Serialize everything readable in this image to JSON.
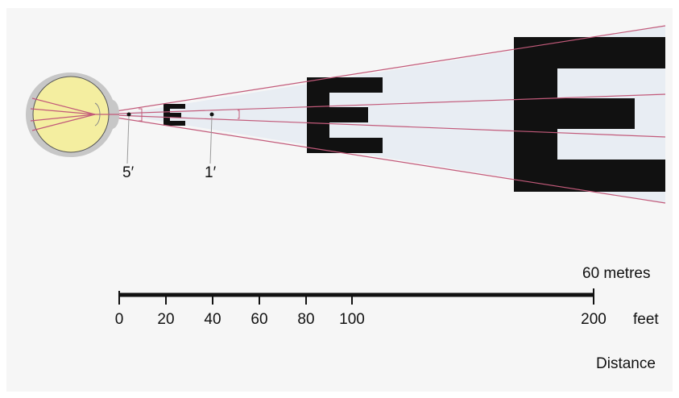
{
  "diagram": {
    "angle_labels": {
      "five_minute": "5′",
      "one_minute": "1′"
    },
    "scale": {
      "metres_label": "60 metres",
      "feet_unit": "feet",
      "distance_label": "Distance",
      "ticks": [
        "0",
        "20",
        "40",
        "60",
        "80",
        "100",
        "200"
      ]
    },
    "colors": {
      "ray": "#c25a7a",
      "cone_fill": "#e6ecf3",
      "lens": "#f6f1a6",
      "letter": "#111111"
    }
  }
}
